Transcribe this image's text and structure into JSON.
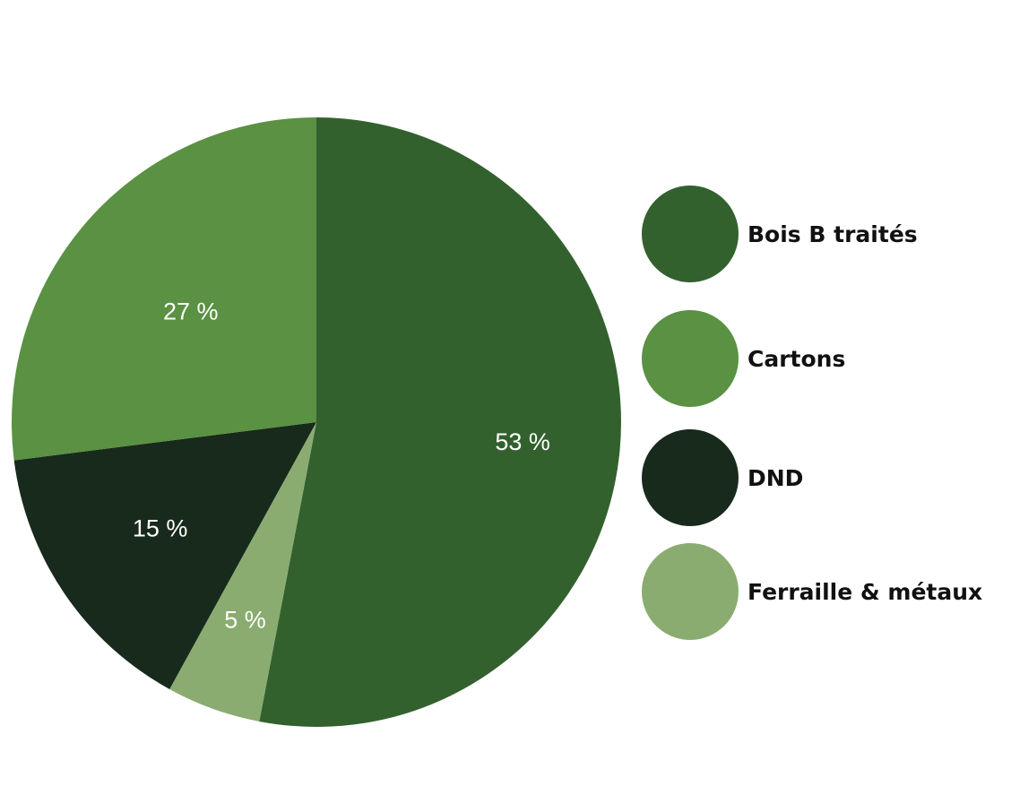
{
  "chart_data": {
    "type": "pie",
    "categories": [
      "Bois B traités",
      "Cartons",
      "DND",
      "Ferraille & métaux"
    ],
    "values": [
      53,
      27,
      15,
      5
    ],
    "value_labels": [
      "53 %",
      "27 %",
      "15 %",
      "5 %"
    ],
    "colors": [
      "#33612e",
      "#5a9142",
      "#182a1c",
      "#8aac70"
    ],
    "start": "12 o'clock",
    "direction": "clockwise",
    "slice_order": [
      "Bois B traités",
      "Ferraille & métaux",
      "DND",
      "Cartons"
    ],
    "legend_position": "right",
    "legend": [
      {
        "label": "Bois B traités",
        "color": "#33612e"
      },
      {
        "label": "Cartons",
        "color": "#5a9142"
      },
      {
        "label": "DND",
        "color": "#182a1c"
      },
      {
        "label": "Ferraille & métaux",
        "color": "#8aac70"
      }
    ],
    "title": ""
  }
}
